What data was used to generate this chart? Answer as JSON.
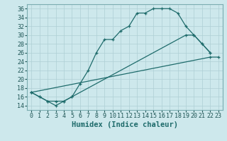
{
  "xlabel": "Humidex (Indice chaleur)",
  "ylabel": "",
  "bg_color": "#cde8ec",
  "line_color": "#1e6b6b",
  "xlim": [
    -0.5,
    23.5
  ],
  "ylim": [
    13,
    37
  ],
  "xticks": [
    0,
    1,
    2,
    3,
    4,
    5,
    6,
    7,
    8,
    9,
    10,
    11,
    12,
    13,
    14,
    15,
    16,
    17,
    18,
    19,
    20,
    21,
    22,
    23
  ],
  "yticks": [
    14,
    16,
    18,
    20,
    22,
    24,
    26,
    28,
    30,
    32,
    34,
    36
  ],
  "line1_x": [
    0,
    1,
    2,
    3,
    4,
    5,
    6,
    7,
    8,
    9,
    10,
    11,
    12,
    13,
    14,
    15,
    16,
    17,
    18,
    19,
    20,
    21,
    22
  ],
  "line1_y": [
    17,
    16,
    15,
    14,
    15,
    16,
    19,
    22,
    26,
    29,
    29,
    31,
    32,
    35,
    35,
    36,
    36,
    36,
    35,
    32,
    30,
    28,
    26
  ],
  "line2_x": [
    0,
    1,
    2,
    3,
    4,
    5,
    19,
    20,
    21,
    22
  ],
  "line2_y": [
    17,
    16,
    15,
    15,
    15,
    16,
    30,
    30,
    28,
    26
  ],
  "line3_x": [
    0,
    22,
    23
  ],
  "line3_y": [
    17,
    25,
    25
  ],
  "grid_color": "#aecfd4",
  "tick_fontsize": 6,
  "label_fontsize": 7.5
}
